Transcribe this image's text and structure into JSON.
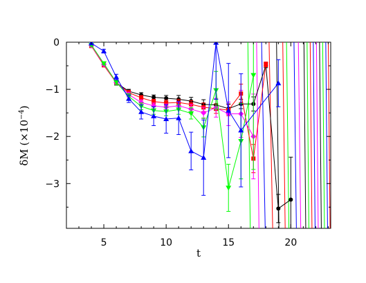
{
  "chart_data": {
    "type": "scatter",
    "xlabel": "t",
    "ylabel": "δM  (×10",
    "ylabel_exp": "−4",
    "ylabel_close": ")",
    "xlim": [
      2,
      23.2
    ],
    "ylim": [
      -3.95,
      0
    ],
    "x_ticks": [
      5,
      10,
      15,
      20
    ],
    "y_ticks": [
      0,
      -1,
      -2,
      -3
    ],
    "grid": false,
    "legend": "none",
    "series": [
      {
        "color": "#000000",
        "marker": "circle",
        "points": [
          {
            "x": 4,
            "y": -0.07,
            "err": 0.02
          },
          {
            "x": 5,
            "y": -0.47,
            "err": 0.03
          },
          {
            "x": 6,
            "y": -0.86,
            "err": 0.05
          },
          {
            "x": 7,
            "y": -1.04,
            "err": 0.04
          },
          {
            "x": 8,
            "y": -1.12,
            "err": 0.05
          },
          {
            "x": 9,
            "y": -1.17,
            "err": 0.05
          },
          {
            "x": 10,
            "y": -1.19,
            "err": 0.06
          },
          {
            "x": 11,
            "y": -1.21,
            "err": 0.08
          },
          {
            "x": 12,
            "y": -1.25,
            "err": 0.08
          },
          {
            "x": 13,
            "y": -1.32,
            "err": 0.1
          },
          {
            "x": 14,
            "y": -1.33,
            "err": 0.12
          },
          {
            "x": 15,
            "y": -1.41,
            "err": 0.1
          },
          {
            "x": 16,
            "y": -1.31,
            "err": 0.1
          },
          {
            "x": 17,
            "y": -1.31,
            "err": 0.15
          },
          {
            "x": 18,
            "y": -0.49,
            "err": 0.05
          },
          {
            "x": 19,
            "y": -3.53,
            "err": 0.3
          },
          {
            "x": 20,
            "y": -3.34,
            "err": 0.9
          }
        ]
      },
      {
        "color": "#ff0000",
        "marker": "square",
        "points": [
          {
            "x": 4,
            "y": -0.08,
            "err": 0.02
          },
          {
            "x": 5,
            "y": -0.49,
            "err": 0.03
          },
          {
            "x": 6,
            "y": -0.86,
            "err": 0.04
          },
          {
            "x": 7,
            "y": -1.07,
            "err": 0.05
          },
          {
            "x": 8,
            "y": -1.18,
            "err": 0.05
          },
          {
            "x": 9,
            "y": -1.26,
            "err": 0.05
          },
          {
            "x": 10,
            "y": -1.29,
            "err": 0.06
          },
          {
            "x": 11,
            "y": -1.28,
            "err": 0.07
          },
          {
            "x": 12,
            "y": -1.32,
            "err": 0.08
          },
          {
            "x": 13,
            "y": -1.38,
            "err": 0.09
          },
          {
            "x": 14,
            "y": -1.41,
            "err": 0.1
          },
          {
            "x": 15,
            "y": -1.44,
            "err": 0.12
          },
          {
            "x": 16,
            "y": -1.09,
            "err": 0.2
          },
          {
            "x": 17,
            "y": -2.47,
            "err": 0.3
          },
          {
            "x": 18,
            "y": -0.47,
            "err": 0.05
          }
        ]
      },
      {
        "color": "#ff00ff",
        "marker": "diamond",
        "points": [
          {
            "x": 4,
            "y": -0.07,
            "err": 0.02
          },
          {
            "x": 5,
            "y": -0.47,
            "err": 0.03
          },
          {
            "x": 6,
            "y": -0.85,
            "err": 0.04
          },
          {
            "x": 7,
            "y": -1.11,
            "err": 0.05
          },
          {
            "x": 8,
            "y": -1.28,
            "err": 0.06
          },
          {
            "x": 9,
            "y": -1.35,
            "err": 0.06
          },
          {
            "x": 10,
            "y": -1.38,
            "err": 0.07
          },
          {
            "x": 11,
            "y": -1.35,
            "err": 0.08
          },
          {
            "x": 12,
            "y": -1.42,
            "err": 0.1
          },
          {
            "x": 13,
            "y": -1.5,
            "err": 0.12
          },
          {
            "x": 14,
            "y": -1.39,
            "err": 0.2
          },
          {
            "x": 15,
            "y": -1.52,
            "err": 0.25
          },
          {
            "x": 16,
            "y": -1.52,
            "err": 0.5
          },
          {
            "x": 17,
            "y": -2.0,
            "err": 0.9
          }
        ]
      },
      {
        "color": "#00ff00",
        "marker": "triangle-down",
        "points": [
          {
            "x": 4,
            "y": -0.06,
            "err": 0.02
          },
          {
            "x": 5,
            "y": -0.45,
            "err": 0.03
          },
          {
            "x": 6,
            "y": -0.85,
            "err": 0.05
          },
          {
            "x": 7,
            "y": -1.15,
            "err": 0.06
          },
          {
            "x": 8,
            "y": -1.36,
            "err": 0.07
          },
          {
            "x": 9,
            "y": -1.45,
            "err": 0.08
          },
          {
            "x": 10,
            "y": -1.47,
            "err": 0.09
          },
          {
            "x": 11,
            "y": -1.43,
            "err": 0.1
          },
          {
            "x": 12,
            "y": -1.51,
            "err": 0.12
          },
          {
            "x": 13,
            "y": -1.81,
            "err": 0.2
          },
          {
            "x": 14,
            "y": -1.02,
            "err": 0.4
          },
          {
            "x": 15,
            "y": -3.09,
            "err": 0.5
          },
          {
            "x": 16,
            "y": -2.1,
            "err": 0.8
          },
          {
            "x": 17,
            "y": -0.7,
            "err": 2.0
          }
        ]
      },
      {
        "color": "#0000ff",
        "marker": "triangle-up",
        "points": [
          {
            "x": 4,
            "y": -0.02,
            "err": 0.02
          },
          {
            "x": 5,
            "y": -0.19,
            "err": 0.04
          },
          {
            "x": 6,
            "y": -0.74,
            "err": 0.06
          },
          {
            "x": 7,
            "y": -1.2,
            "err": 0.08
          },
          {
            "x": 8,
            "y": -1.48,
            "err": 0.15
          },
          {
            "x": 9,
            "y": -1.57,
            "err": 0.2
          },
          {
            "x": 10,
            "y": -1.63,
            "err": 0.3
          },
          {
            "x": 11,
            "y": -1.61,
            "err": 0.35
          },
          {
            "x": 12,
            "y": -2.31,
            "err": 0.4
          },
          {
            "x": 13,
            "y": -2.45,
            "err": 0.8
          },
          {
            "x": 14,
            "y": -0.01,
            "err": 1.2
          },
          {
            "x": 15,
            "y": -1.45,
            "err": 1.0
          },
          {
            "x": 16,
            "y": -1.87,
            "err": 1.2
          },
          {
            "x": 19,
            "y": -0.87,
            "err": 0.5
          }
        ]
      }
    ],
    "divergent_lines": [
      {
        "color": "#00ff00",
        "x1": 16.55,
        "x2": 16.75
      },
      {
        "color": "#ff00ff",
        "x1": 17.25,
        "x2": 17.45
      },
      {
        "color": "#0000ff",
        "x1": 17.65,
        "x2": 17.95
      },
      {
        "color": "#ff0000",
        "x1": 18.25,
        "x2": 18.55
      },
      {
        "color": "#000000",
        "x1": 18.85,
        "x2": 19.05
      },
      {
        "color": "#ff0000",
        "x1": 19.35,
        "x2": 19.55
      },
      {
        "color": "#00ff00",
        "x1": 19.65,
        "x2": 19.85
      },
      {
        "color": "#0000ff",
        "x1": 20.25,
        "x2": 20.45
      },
      {
        "color": "#ff00ff",
        "x1": 20.6,
        "x2": 20.8
      },
      {
        "color": "#000000",
        "x1": 21.05,
        "x2": 21.2
      },
      {
        "color": "#00ff00",
        "x1": 21.3,
        "x2": 21.45
      },
      {
        "color": "#ff0000",
        "x1": 21.55,
        "x2": 21.7
      },
      {
        "color": "#0000ff",
        "x1": 21.8,
        "x2": 21.95
      },
      {
        "color": "#ff00ff",
        "x1": 22.05,
        "x2": 22.2
      },
      {
        "color": "#000000",
        "x1": 22.3,
        "x2": 22.45
      },
      {
        "color": "#00ff00",
        "x1": 22.55,
        "x2": 22.7
      },
      {
        "color": "#0000ff",
        "x1": 22.8,
        "x2": 22.95
      },
      {
        "color": "#ff0000",
        "x1": 23.0,
        "x2": 23.15
      }
    ]
  }
}
